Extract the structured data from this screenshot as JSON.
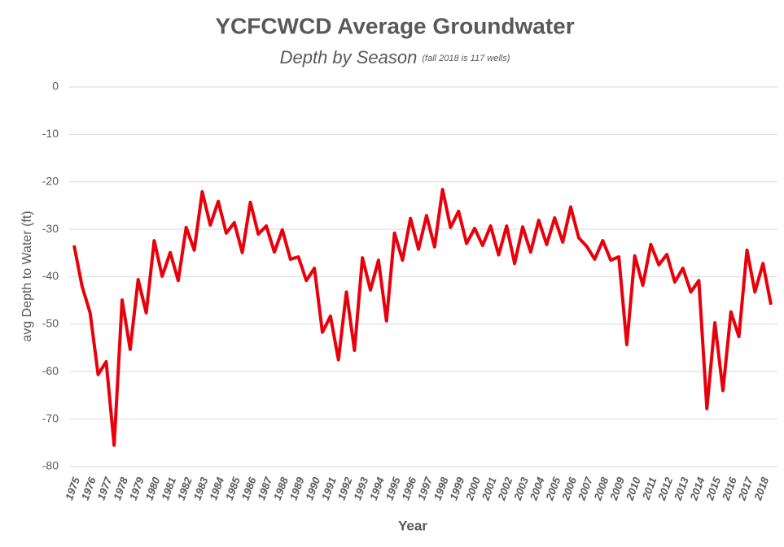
{
  "chart_data": {
    "type": "line",
    "title": "YCFCWCD Average Groundwater",
    "subtitle": "Depth by Season",
    "note": "(fall 2018 is 117 wells)",
    "xlabel": "Year",
    "ylabel": "avg Depth to Water (ft)",
    "categories": [
      "1975",
      null,
      "1976",
      null,
      "1977",
      null,
      "1978",
      null,
      "1979",
      null,
      "1980",
      null,
      "1981",
      null,
      "1982",
      null,
      "1983",
      null,
      "1984",
      null,
      "1985",
      null,
      "1986",
      null,
      "1987",
      null,
      "1988",
      null,
      "1989",
      null,
      "1990",
      null,
      "1991",
      null,
      "1992",
      null,
      "1993",
      null,
      "1994",
      null,
      "1995",
      null,
      "1996",
      null,
      "1997",
      null,
      "1998",
      null,
      "1999",
      null,
      "2000",
      null,
      "2001",
      null,
      "2002",
      null,
      "2003",
      null,
      "2004",
      null,
      "2005",
      null,
      "2006",
      null,
      "2007",
      null,
      "2008",
      null,
      "2009",
      null,
      "2010",
      null,
      "2011",
      null,
      "2012",
      null,
      "2013",
      null,
      "2014",
      null,
      "2015",
      null,
      "2016",
      null,
      "2017",
      null,
      "2018",
      null
    ],
    "series": [
      {
        "name": "avg Depth to Water (ft)",
        "color": "#e8000b",
        "values": [
          -33.4,
          -42,
          -47.6,
          -60.6,
          -57.9,
          -75.5,
          -44.9,
          -55.3,
          -40.6,
          -47.6,
          -32.4,
          -39.9,
          -34.9,
          -40.8,
          -29.6,
          -34.4,
          -22.1,
          -29.1,
          -24.1,
          -30.8,
          -28.6,
          -34.9,
          -24.3,
          -31.0,
          -29.3,
          -34.8,
          -30.1,
          -36.3,
          -35.8,
          -40.8,
          -38.2,
          -51.7,
          -48.3,
          -57.5,
          -43.2,
          -55.5,
          -36.0,
          -42.8,
          -36.5,
          -49.3,
          -30.8,
          -36.5,
          -27.7,
          -34.2,
          -27.1,
          -33.7,
          -21.6,
          -29.6,
          -26.2,
          -33.0,
          -29.8,
          -33.4,
          -29.3,
          -35.4,
          -29.3,
          -37.2,
          -29.5,
          -34.8,
          -28.1,
          -33.2,
          -27.6,
          -32.7,
          -25.3,
          -31.8,
          -33.6,
          -36.3,
          -32.4,
          -36.5,
          -35.8,
          -54.3,
          -35.6,
          -41.8,
          -33.2,
          -37.5,
          -35.3,
          -41.1,
          -38.2,
          -43.2,
          -40.8,
          -67.8,
          -49.7,
          -64.0,
          -47.4,
          -52.6,
          -34.4,
          -43.2,
          -37.2,
          -45.9
        ]
      }
    ],
    "ylim": [
      -80,
      0
    ],
    "yticks": [
      0,
      -10,
      -20,
      -30,
      -40,
      -50,
      -60,
      -70,
      -80
    ],
    "grid": true
  }
}
